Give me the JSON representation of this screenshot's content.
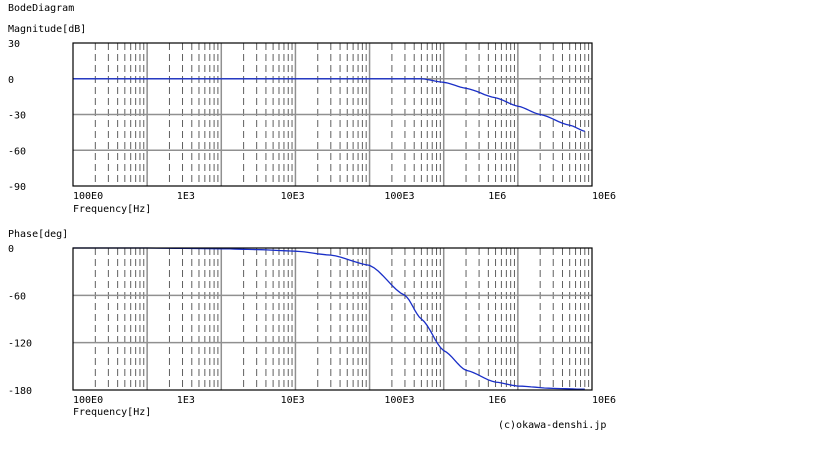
{
  "page": {
    "title": "BodeDiagram",
    "copyright": "(c)okawa-denshi.jp"
  },
  "chart_data": [
    {
      "type": "line",
      "title": "",
      "ylabel": "Magnitude[dB]",
      "xlabel": "Frequency[Hz]",
      "x_scale": "log",
      "xlim": [
        1,
        10000000
      ],
      "ylim": [
        -90,
        30
      ],
      "x_tick_labels": [
        "100E0",
        "1E3",
        "10E3",
        "100E3",
        "1E6",
        "10E6"
      ],
      "y_tick_labels": [
        "30",
        "0",
        "-30",
        "-60",
        "-90"
      ],
      "grid": true,
      "colors": {
        "line": "#1a2fc7",
        "grid_major": "#909090",
        "grid_minor": "#606060"
      },
      "series": [
        {
          "x": [
            1,
            100,
            1000,
            10000,
            50000,
            100000,
            200000,
            500000,
            1000000,
            2000000,
            5000000,
            8000000
          ],
          "values": [
            0,
            0,
            0,
            0,
            0,
            -3,
            -8,
            -16,
            -23,
            -30,
            -39,
            -44
          ]
        }
      ]
    },
    {
      "type": "line",
      "title": "",
      "ylabel": "Phase[deg]",
      "xlabel": "Frequency[Hz]",
      "x_scale": "log",
      "xlim": [
        1,
        10000000
      ],
      "ylim": [
        -180,
        0
      ],
      "x_tick_labels": [
        "100E0",
        "1E3",
        "10E3",
        "100E3",
        "1E6",
        "10E6"
      ],
      "y_tick_labels": [
        "0",
        "-60",
        "-120",
        "-180"
      ],
      "grid": true,
      "colors": {
        "line": "#1a2fc7",
        "grid_major": "#909090",
        "grid_minor": "#606060"
      },
      "series": [
        {
          "x": [
            1,
            10,
            100,
            300,
            1000,
            3000,
            10000,
            30000,
            50000,
            100000,
            200000,
            500000,
            1000000,
            3000000,
            8000000
          ],
          "values": [
            0,
            0,
            -1,
            -2,
            -4,
            -9,
            -22,
            -60,
            -90,
            -130,
            -155,
            -170,
            -175,
            -178,
            -179
          ]
        }
      ]
    }
  ]
}
